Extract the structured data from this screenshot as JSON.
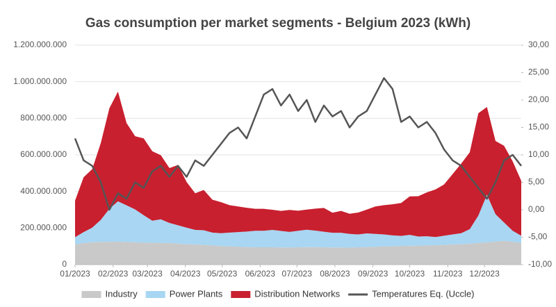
{
  "chart_data": {
    "type": "area",
    "stacked": true,
    "title": "Gas consumption per market segments - Belgium 2023 (kWh)",
    "x": [
      0,
      7,
      14,
      21,
      28,
      35,
      42,
      49,
      56,
      63,
      70,
      77,
      84,
      91,
      98,
      105,
      112,
      119,
      126,
      133,
      140,
      147,
      154,
      161,
      168,
      175,
      182,
      189,
      196,
      203,
      210,
      217,
      224,
      231,
      238,
      245,
      252,
      259,
      266,
      273,
      280,
      287,
      294,
      301,
      308,
      315,
      322,
      329,
      336,
      343,
      350,
      357,
      364
    ],
    "xlim": [
      0,
      364
    ],
    "xticks": [
      {
        "value": 0,
        "label": "01/2023"
      },
      {
        "value": 31,
        "label": "02/2023"
      },
      {
        "value": 59,
        "label": "03/2023"
      },
      {
        "value": 90,
        "label": "04/2023"
      },
      {
        "value": 120,
        "label": "05/2023"
      },
      {
        "value": 151,
        "label": "06/2023"
      },
      {
        "value": 181,
        "label": "07/2023"
      },
      {
        "value": 212,
        "label": "08/2023"
      },
      {
        "value": 243,
        "label": "09/2023"
      },
      {
        "value": 273,
        "label": "10/2023"
      },
      {
        "value": 304,
        "label": "11/2023"
      },
      {
        "value": 334,
        "label": "12/2023"
      }
    ],
    "ylim": [
      0,
      1200000000
    ],
    "yticks": [
      0,
      {
        "value": 200000000,
        "label": "200.000.000"
      },
      {
        "value": 400000000,
        "label": "400.000.000"
      },
      {
        "value": 600000000,
        "label": "600.000.000"
      },
      {
        "value": 800000000,
        "label": "800.000.000"
      },
      {
        "value": 1000000000,
        "label": "1.000.000.000"
      },
      {
        "value": 1200000000,
        "label": "1.200.000.000"
      }
    ],
    "y2lim": [
      -10,
      30
    ],
    "y2ticks": [
      {
        "value": -10,
        "label": "-10,00"
      },
      {
        "value": -5,
        "label": "-5,00"
      },
      {
        "value": 0,
        "label": "0,00"
      },
      {
        "value": 5,
        "label": "5,00"
      },
      {
        "value": 10,
        "label": "10,00"
      },
      {
        "value": 15,
        "label": "15,00"
      },
      {
        "value": 20,
        "label": "20,00"
      },
      {
        "value": 25,
        "label": "25,00"
      },
      {
        "value": 30,
        "label": "30,00"
      }
    ],
    "grid": true,
    "legend": "bottom",
    "series": [
      {
        "name": "Industry",
        "color": "#c9c9c9",
        "values": [
          110000000,
          118000000,
          122000000,
          125000000,
          125000000,
          126000000,
          124000000,
          122000000,
          120000000,
          120000000,
          118000000,
          118000000,
          115000000,
          112000000,
          110000000,
          108000000,
          105000000,
          102000000,
          100000000,
          98000000,
          96000000,
          95000000,
          95000000,
          95000000,
          94000000,
          94000000,
          95000000,
          96000000,
          96000000,
          95000000,
          94000000,
          94000000,
          93000000,
          95000000,
          96000000,
          98000000,
          100000000,
          100000000,
          102000000,
          103000000,
          104000000,
          105000000,
          106000000,
          108000000,
          110000000,
          112000000,
          114000000,
          118000000,
          122000000,
          126000000,
          130000000,
          125000000,
          118000000
        ]
      },
      {
        "name": "Power Plants",
        "color": "#a8d6f3",
        "values": [
          40000000,
          60000000,
          80000000,
          120000000,
          180000000,
          220000000,
          200000000,
          180000000,
          150000000,
          120000000,
          130000000,
          110000000,
          100000000,
          90000000,
          80000000,
          80000000,
          70000000,
          70000000,
          75000000,
          80000000,
          85000000,
          90000000,
          90000000,
          95000000,
          90000000,
          85000000,
          90000000,
          95000000,
          90000000,
          85000000,
          80000000,
          80000000,
          75000000,
          70000000,
          75000000,
          70000000,
          65000000,
          60000000,
          55000000,
          60000000,
          50000000,
          50000000,
          45000000,
          50000000,
          55000000,
          60000000,
          80000000,
          150000000,
          260000000,
          150000000,
          100000000,
          60000000,
          40000000
        ]
      },
      {
        "name": "Distribution Networks",
        "color": "#c8202f",
        "values": [
          200000000,
          300000000,
          320000000,
          420000000,
          550000000,
          600000000,
          450000000,
          400000000,
          420000000,
          380000000,
          350000000,
          300000000,
          330000000,
          250000000,
          200000000,
          220000000,
          180000000,
          170000000,
          150000000,
          140000000,
          130000000,
          120000000,
          120000000,
          110000000,
          110000000,
          120000000,
          110000000,
          110000000,
          120000000,
          130000000,
          110000000,
          120000000,
          110000000,
          120000000,
          130000000,
          150000000,
          160000000,
          170000000,
          180000000,
          210000000,
          220000000,
          240000000,
          260000000,
          280000000,
          330000000,
          380000000,
          420000000,
          560000000,
          480000000,
          400000000,
          420000000,
          380000000,
          300000000
        ]
      },
      {
        "name": "Temperatures Eq. (Uccle)",
        "color": "#555555",
        "type": "line",
        "axis": "y2",
        "values": [
          13,
          9,
          8,
          5,
          0,
          3,
          2,
          5,
          4,
          7,
          8,
          6,
          8,
          6,
          9,
          8,
          10,
          12,
          14,
          15,
          13,
          17,
          21,
          22,
          19,
          21,
          18,
          20,
          16,
          19,
          17,
          18,
          15,
          17,
          18,
          21,
          24,
          22,
          16,
          17,
          15,
          16,
          14,
          11,
          9,
          8,
          6,
          4,
          2,
          5,
          9,
          10,
          8
        ]
      }
    ]
  }
}
